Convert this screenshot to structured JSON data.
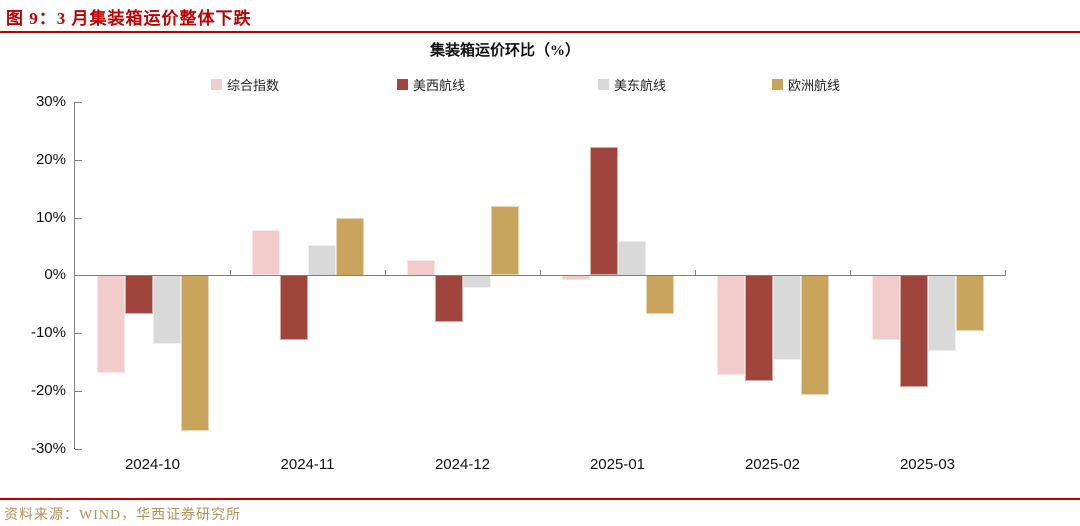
{
  "page": {
    "figure_title": "图 9：3 月集装箱运价整体下跌",
    "source_note": "资料来源：WIND，华西证券研究所"
  },
  "chart_data": {
    "type": "bar",
    "title": "集装箱运价环比（%）",
    "categories": [
      "2024-10",
      "2024-11",
      "2024-12",
      "2025-01",
      "2025-02",
      "2025-03"
    ],
    "series": [
      {
        "name": "综合指数",
        "color": "#F2CBCB",
        "values": [
          -17.0,
          7.8,
          2.7,
          -0.8,
          -17.3,
          -11.3
        ]
      },
      {
        "name": "美西航线",
        "color": "#A0453B",
        "values": [
          -6.7,
          -11.3,
          -8.2,
          22.2,
          -18.3,
          -19.3
        ]
      },
      {
        "name": "美东航线",
        "color": "#D9D9D9",
        "values": [
          -12.0,
          5.3,
          -2.2,
          6.0,
          -14.7,
          -13.2
        ]
      },
      {
        "name": "欧洲航线",
        "color": "#C9A45C",
        "values": [
          -27.0,
          10.0,
          12.0,
          -6.8,
          -20.7,
          -9.7
        ]
      }
    ],
    "ylim": [
      -30,
      30
    ],
    "y_tick_labels": [
      "30%",
      "20%",
      "10%",
      "0%",
      "-10%",
      "-20%",
      "-30%"
    ],
    "grid": false,
    "legend_position": "top"
  },
  "colors": {
    "accent_red": "#C00000",
    "axis_line": "#808080",
    "source_text": "#B5915A"
  }
}
